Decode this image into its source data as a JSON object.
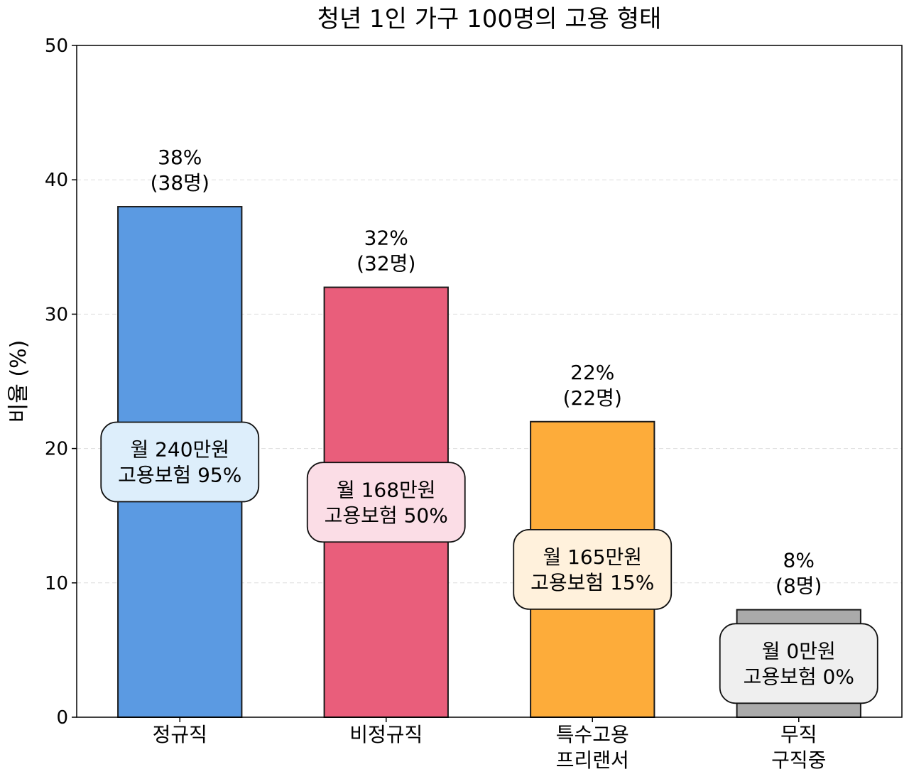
{
  "chart_data": {
    "type": "bar",
    "title": "청년 1인 가구 100명의 고용 형태",
    "ylabel": "비율 (%)",
    "xlabel": "",
    "ylim": [
      0,
      50
    ],
    "yticks": [
      "0",
      "10",
      "20",
      "30",
      "40",
      "50"
    ],
    "grid": true,
    "categories": [
      [
        "정규직"
      ],
      [
        "비정규직"
      ],
      [
        "특수고용",
        "프리랜서"
      ],
      [
        "무직",
        "구직중"
      ]
    ],
    "values": [
      38,
      32,
      22,
      8
    ],
    "value_labels": [
      [
        "38%",
        "(38명)"
      ],
      [
        "32%",
        "(32명)"
      ],
      [
        "22%",
        "(22명)"
      ],
      [
        "8%",
        "(8명)"
      ]
    ],
    "annotations": [
      [
        "월 240만원",
        "고용보험 95%"
      ],
      [
        "월 168만원",
        "고용보험 50%"
      ],
      [
        "월 165만원",
        "고용보험 15%"
      ],
      [
        "월 0만원",
        "고용보험 0%"
      ]
    ],
    "annotation_y": [
      19,
      16,
      11,
      4
    ],
    "colors": [
      "#5b9ae2",
      "#e95e7b",
      "#fdac3a",
      "#aaaaaa"
    ],
    "annotation_colors": [
      "#ddeefb",
      "#fbdde6",
      "#fff1dc",
      "#efefef"
    ]
  }
}
